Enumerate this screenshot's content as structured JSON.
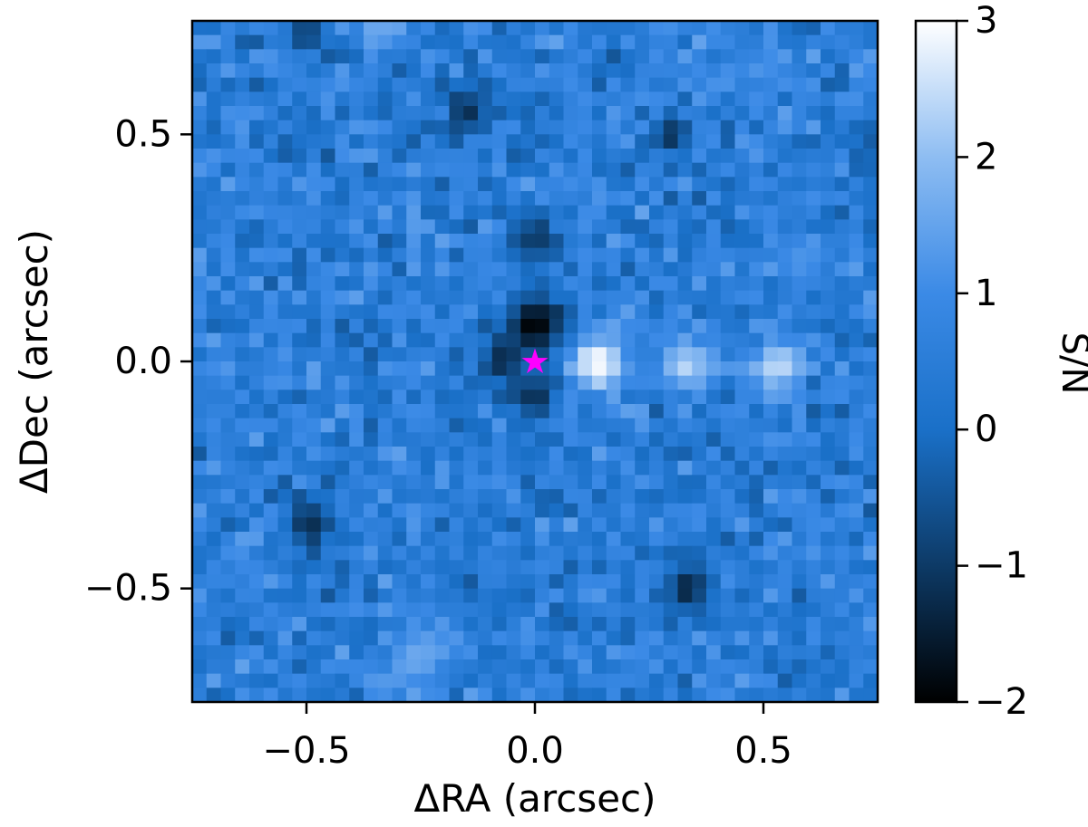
{
  "chart_data": {
    "type": "heatmap",
    "xlabel": "ΔRA (arcsec)",
    "ylabel": "ΔDec (arcsec)",
    "xlim": [
      -0.75,
      0.75
    ],
    "ylim": [
      -0.75,
      0.75
    ],
    "x_ticks": [
      {
        "value": -0.5,
        "label": "−0.5"
      },
      {
        "value": 0.0,
        "label": "0.0"
      },
      {
        "value": 0.5,
        "label": "0.5"
      }
    ],
    "y_ticks": [
      {
        "value": -0.5,
        "label": "−0.5"
      },
      {
        "value": 0.0,
        "label": "0.0"
      },
      {
        "value": 0.5,
        "label": "0.5"
      }
    ],
    "grid": false,
    "grid_resolution": 48,
    "background_snr_level": 0.5,
    "features": [
      {
        "kind": "dark",
        "x": 0.0,
        "y": 0.08,
        "sigma": 0.05,
        "snr": -2.0
      },
      {
        "kind": "dark",
        "x": -0.07,
        "y": 0.0,
        "sigma": 0.035,
        "snr": -1.3
      },
      {
        "kind": "dark",
        "x": 0.0,
        "y": -0.08,
        "sigma": 0.035,
        "snr": -1.2
      },
      {
        "kind": "dark",
        "x": 0.0,
        "y": 0.27,
        "sigma": 0.04,
        "snr": -1.0
      },
      {
        "kind": "dark",
        "x": -0.49,
        "y": -0.36,
        "sigma": 0.04,
        "snr": -1.2
      },
      {
        "kind": "dark",
        "x": 0.33,
        "y": -0.5,
        "sigma": 0.035,
        "snr": -1.4
      },
      {
        "kind": "dark",
        "x": -0.15,
        "y": 0.55,
        "sigma": 0.03,
        "snr": -1.3
      },
      {
        "kind": "dark",
        "x": 0.3,
        "y": 0.5,
        "sigma": 0.03,
        "snr": -1.2
      },
      {
        "kind": "dark",
        "x": -0.5,
        "y": 0.72,
        "sigma": 0.03,
        "snr": -1.0
      },
      {
        "kind": "bright",
        "x": 0.14,
        "y": 0.0,
        "sigma": 0.045,
        "snr": 3.0
      },
      {
        "kind": "bright",
        "x": 0.33,
        "y": -0.01,
        "sigma": 0.04,
        "snr": 2.4
      },
      {
        "kind": "bright",
        "x": 0.53,
        "y": -0.01,
        "sigma": 0.04,
        "snr": 2.5
      },
      {
        "kind": "bright",
        "x": 0.2,
        "y": 0.11,
        "sigma": 0.03,
        "snr": 1.4
      },
      {
        "kind": "bright",
        "x": 0.58,
        "y": 0.22,
        "sigma": 0.05,
        "snr": 1.2
      },
      {
        "kind": "bright",
        "x": -0.34,
        "y": 0.73,
        "sigma": 0.04,
        "snr": 1.6
      },
      {
        "kind": "bright",
        "x": -0.26,
        "y": -0.65,
        "sigma": 0.05,
        "snr": 1.6
      }
    ],
    "star_marker": {
      "x": 0.0,
      "y": 0.0,
      "symbol": "★",
      "color": "#ff00ff"
    },
    "colorbar": {
      "label": "S/N",
      "vmin": -2,
      "vmax": 3,
      "ticks": [
        {
          "value": 3,
          "label": "3"
        },
        {
          "value": 2,
          "label": "2"
        },
        {
          "value": 1,
          "label": "1"
        },
        {
          "value": 0,
          "label": "0"
        },
        {
          "value": -1,
          "label": "−1"
        },
        {
          "value": -2,
          "label": "−2"
        }
      ],
      "colormap": [
        "#000000",
        "#0d3a66",
        "#1a70c8",
        "#3b8ae6",
        "#8ebdf2",
        "#ffffff"
      ]
    }
  }
}
